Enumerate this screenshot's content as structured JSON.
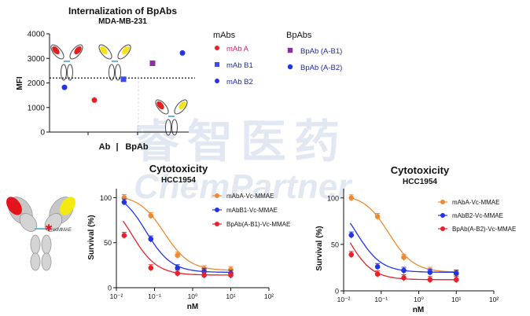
{
  "watermark": {
    "cn": "睿智医药",
    "en": "ChemPartner"
  },
  "antibody_label": "vcMMAE",
  "colors": {
    "red": "#e8202a",
    "blue": "#2233e8",
    "orange": "#f08a30",
    "purple": "#8c2fa0",
    "navy": "#1c2aa0",
    "pink_label": "#d0206a"
  },
  "chart_data": [
    {
      "id": "internalization",
      "type": "scatter",
      "title": "Internalization of BpAbs",
      "subtitle": "MDA-MB-231",
      "xlabel": "Ab | BpAb",
      "x_group_labels": [
        "Ab",
        "BpAb"
      ],
      "ylabel": "MFI",
      "ylim": [
        0,
        4000
      ],
      "yticks": [
        0,
        1000,
        2000,
        3000,
        4000
      ],
      "grid": false,
      "reference_line": 2200,
      "legend_titles": [
        "mAbs",
        "BpAbs"
      ],
      "series": [
        {
          "name": "mAb A",
          "group": "mAbs",
          "color": "#e8202a",
          "marker": "circle",
          "value": 1300
        },
        {
          "name": "mAb B1",
          "group": "mAbs",
          "color": "#3b4cf0",
          "marker": "square",
          "value": 2150
        },
        {
          "name": "mAb B2",
          "group": "mAbs",
          "color": "#2233e8",
          "marker": "circle",
          "value": 1820
        },
        {
          "name": "BpAb (A-B1)",
          "group": "BpAbs",
          "color": "#8c2fa0",
          "marker": "square",
          "value": 2800
        },
        {
          "name": "BpAb (A-B2)",
          "group": "BpAbs",
          "color": "#2233e8",
          "marker": "circle",
          "value": 3220
        }
      ]
    },
    {
      "id": "cyto1",
      "type": "line",
      "title": "Cytotoxicity",
      "subtitle": "HCC1954",
      "xlabel": "nM",
      "ylabel": "Survival (%)",
      "xscale": "log",
      "xlim": [
        0.01,
        100
      ],
      "xticks": [
        "10⁻²",
        "10⁻¹",
        "10⁰",
        "10¹",
        "10²"
      ],
      "ylim": [
        0,
        110
      ],
      "yticks": [
        0,
        50,
        100
      ],
      "series": [
        {
          "name": "mAbA-Vc-MMAE",
          "color": "#f08a30",
          "x": [
            0.016,
            0.08,
            0.4,
            2,
            10
          ],
          "y": [
            100,
            80,
            36,
            21,
            20
          ],
          "fit_ec50": 0.18,
          "fit_top": 103,
          "fit_bottom": 19
        },
        {
          "name": "mAbB1-Vc-MMAE",
          "color": "#2233e8",
          "x": [
            0.016,
            0.08,
            0.4,
            2,
            10
          ],
          "y": [
            95,
            54,
            22,
            18,
            16
          ],
          "fit_ec50": 0.06,
          "fit_top": 108,
          "fit_bottom": 17
        },
        {
          "name": "BpAb(A-B1)-Vc-MMAE",
          "color": "#e8202a",
          "x": [
            0.016,
            0.08,
            0.4,
            2,
            10
          ],
          "y": [
            58,
            22,
            16,
            14,
            14
          ],
          "fit_ec50": 0.025,
          "fit_top": 105,
          "fit_bottom": 14
        }
      ]
    },
    {
      "id": "cyto2",
      "type": "line",
      "title": "Cytotoxicity",
      "subtitle": "HCC1954",
      "xlabel": "nM",
      "ylabel": "Survival (%)",
      "xscale": "log",
      "xlim": [
        0.01,
        100
      ],
      "xticks": [
        "10⁻²",
        "10⁻¹",
        "10⁰",
        "10¹",
        "10²"
      ],
      "ylim": [
        0,
        110
      ],
      "yticks": [
        0,
        50,
        100
      ],
      "series": [
        {
          "name": "mAbA-Vc-MMAE",
          "color": "#f08a30",
          "x": [
            0.016,
            0.08,
            0.4,
            2,
            10
          ],
          "y": [
            100,
            80,
            36,
            22,
            18
          ],
          "fit_ec50": 0.16,
          "fit_top": 104,
          "fit_bottom": 20
        },
        {
          "name": "mAbB2-Vc-MMAE",
          "color": "#2233e8",
          "x": [
            0.016,
            0.08,
            0.4,
            2,
            10
          ],
          "y": [
            60,
            26,
            22,
            20,
            19
          ],
          "fit_ec50": 0.022,
          "fit_top": 105,
          "fit_bottom": 20
        },
        {
          "name": "BpAb(A-B2)-Vc-MMAE",
          "color": "#e8202a",
          "x": [
            0.016,
            0.08,
            0.4,
            2,
            10
          ],
          "y": [
            39,
            18,
            14,
            12,
            12
          ],
          "fit_ec50": 0.012,
          "fit_top": 105,
          "fit_bottom": 12
        }
      ]
    }
  ]
}
